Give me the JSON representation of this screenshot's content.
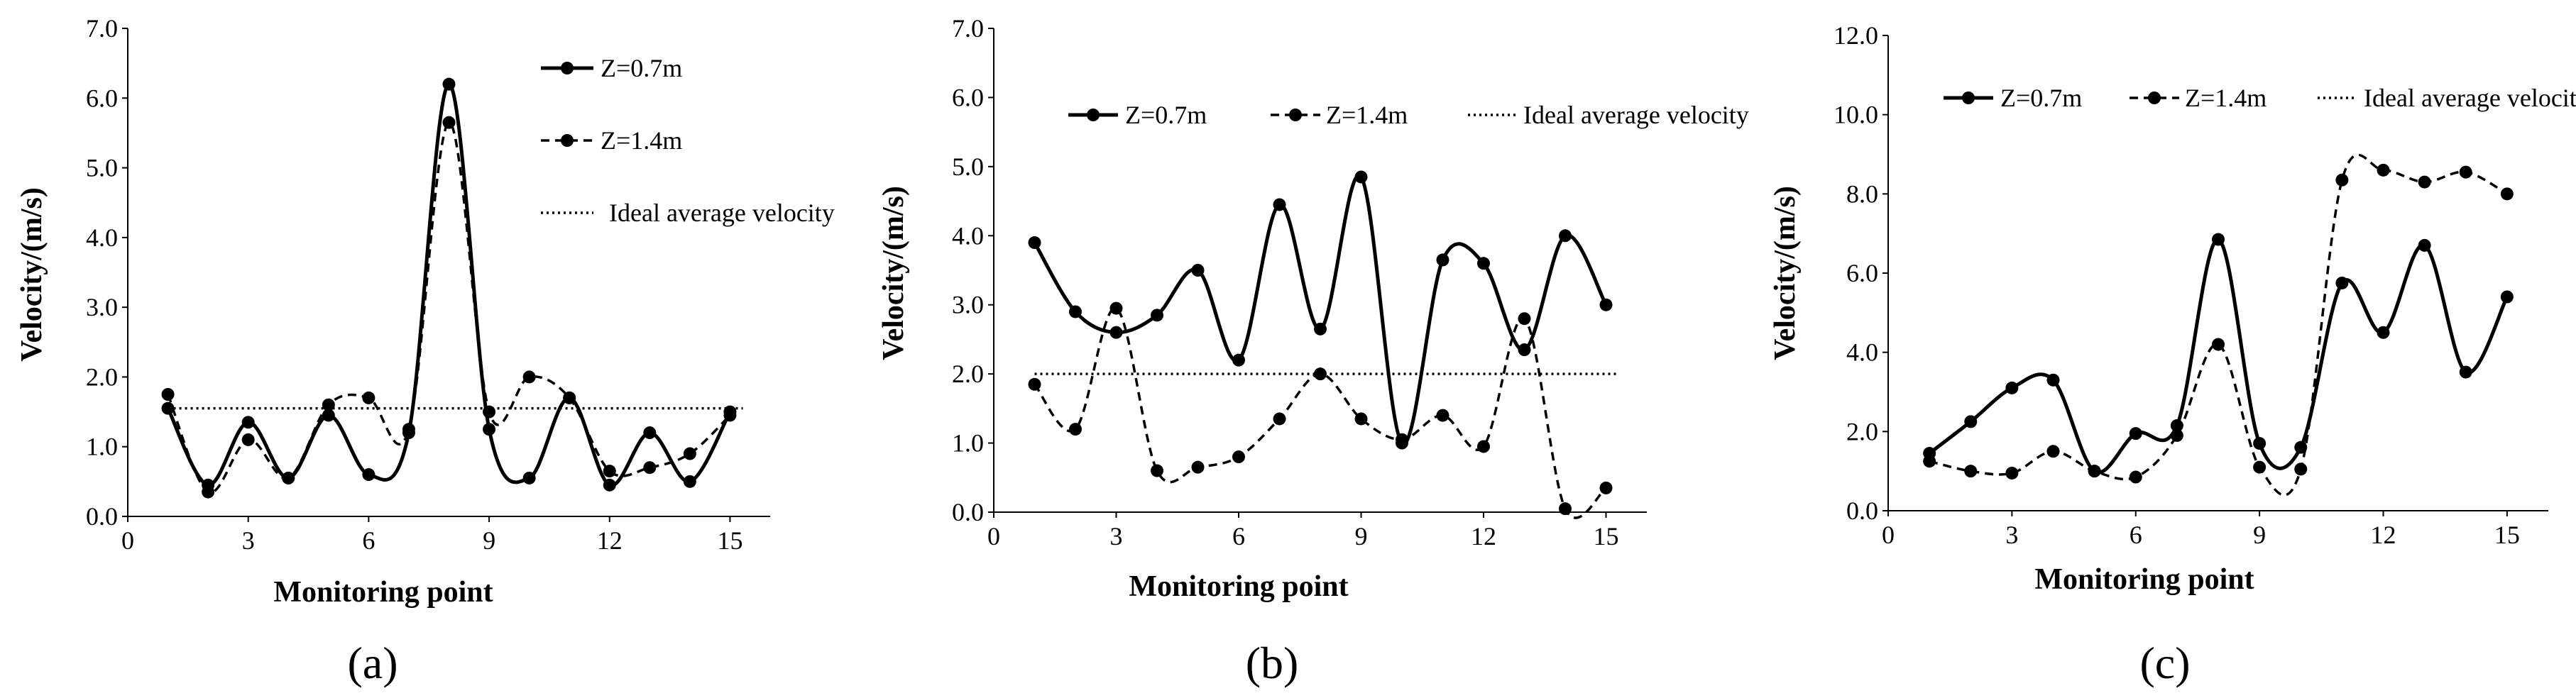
{
  "figure": {
    "panels": [
      "a",
      "b",
      "c"
    ]
  },
  "chart_data": [
    {
      "type": "line",
      "panel_label": "(a)",
      "title": "",
      "xlabel": "Monitoring point",
      "ylabel": "Velocity/(m/s)",
      "xlim": [
        0,
        16
      ],
      "ylim": [
        0,
        7
      ],
      "xticks": [
        0,
        3,
        6,
        9,
        12,
        15
      ],
      "yticks": [
        0,
        1,
        2,
        3,
        4,
        5,
        6,
        7
      ],
      "tick_decimals": 1,
      "xtick_labels": [
        "0",
        "3",
        "6",
        "9",
        "12",
        "15"
      ],
      "ytick_labels": [
        "0.0",
        "1.0",
        "2.0",
        "3.0",
        "4.0",
        "5.0",
        "6.0",
        "7.0"
      ],
      "legend_position": "right",
      "x": [
        1,
        2,
        3,
        4,
        5,
        6,
        7,
        8,
        9,
        10,
        11,
        12,
        13,
        14,
        15
      ],
      "series": [
        {
          "name": "Z=0.7m",
          "style": "solid",
          "values": [
            1.55,
            0.45,
            1.35,
            0.55,
            1.45,
            0.6,
            1.2,
            6.2,
            1.25,
            0.55,
            1.7,
            0.45,
            1.2,
            0.5,
            1.5
          ]
        },
        {
          "name": "Z=1.4m",
          "style": "dashed",
          "values": [
            1.75,
            0.35,
            1.1,
            0.55,
            1.6,
            1.7,
            1.25,
            5.65,
            1.5,
            2.0,
            1.7,
            0.65,
            0.7,
            0.9,
            1.45
          ]
        }
      ],
      "reference_line": {
        "name": "Ideal average velocity",
        "value": 1.55
      }
    },
    {
      "type": "line",
      "panel_label": "(b)",
      "title": "",
      "xlabel": "Monitoring point",
      "ylabel": "Velocity/(m/s)",
      "xlim": [
        0,
        16
      ],
      "ylim": [
        0,
        7
      ],
      "xticks": [
        0,
        3,
        6,
        9,
        12,
        15
      ],
      "yticks": [
        0,
        1,
        2,
        3,
        4,
        5,
        6,
        7
      ],
      "tick_decimals": 1,
      "xtick_labels": [
        "0",
        "3",
        "6",
        "9",
        "12",
        "15"
      ],
      "ytick_labels": [
        "0.0",
        "1.0",
        "2.0",
        "3.0",
        "4.0",
        "5.0",
        "6.0",
        "7.0"
      ],
      "legend_position": "top",
      "x": [
        1,
        2,
        3,
        4,
        5,
        6,
        7,
        8,
        9,
        10,
        11,
        12,
        13,
        14,
        15
      ],
      "series": [
        {
          "name": "Z=0.7m",
          "style": "solid",
          "values": [
            3.9,
            2.9,
            2.6,
            2.85,
            3.5,
            2.2,
            4.45,
            2.65,
            4.85,
            1.0,
            3.65,
            3.6,
            2.35,
            4.0,
            3.0
          ]
        },
        {
          "name": "Z=1.4m",
          "style": "dashed",
          "values": [
            1.85,
            1.2,
            2.95,
            0.6,
            0.65,
            0.8,
            1.35,
            2.0,
            1.35,
            1.05,
            1.4,
            0.95,
            2.8,
            0.05,
            0.35
          ]
        }
      ],
      "reference_line": {
        "name": "Ideal average velocity",
        "value": 2.0
      }
    },
    {
      "type": "line",
      "panel_label": "(c)",
      "title": "",
      "xlabel": "Monitoring point",
      "ylabel": "Velocity/(m/s)",
      "xlim": [
        0,
        16
      ],
      "ylim": [
        0,
        12
      ],
      "xticks": [
        0,
        3,
        6,
        9,
        12,
        15
      ],
      "yticks": [
        0,
        2,
        4,
        6,
        8,
        10,
        12
      ],
      "tick_decimals": 1,
      "xtick_labels": [
        "0",
        "3",
        "6",
        "9",
        "12",
        "15"
      ],
      "ytick_labels": [
        "0.0",
        "2.0",
        "4.0",
        "6.0",
        "8.0",
        "10.0",
        "12.0"
      ],
      "legend_position": "top",
      "x": [
        1,
        2,
        3,
        4,
        5,
        6,
        7,
        8,
        9,
        10,
        11,
        12,
        13,
        14,
        15
      ],
      "series": [
        {
          "name": "Z=0.7m",
          "style": "solid",
          "values": [
            1.45,
            2.25,
            3.1,
            3.3,
            1.0,
            1.95,
            2.15,
            6.85,
            1.7,
            1.6,
            5.75,
            4.5,
            6.7,
            3.5,
            5.4
          ]
        },
        {
          "name": "Z=1.4m",
          "style": "dashed",
          "values": [
            1.25,
            1.0,
            0.95,
            1.5,
            1.0,
            0.85,
            1.9,
            4.2,
            1.1,
            1.05,
            8.35,
            8.6,
            8.3,
            8.55,
            8.0
          ]
        }
      ],
      "reference_line": {
        "name": "Ideal average velocity",
        "value": null
      }
    }
  ]
}
